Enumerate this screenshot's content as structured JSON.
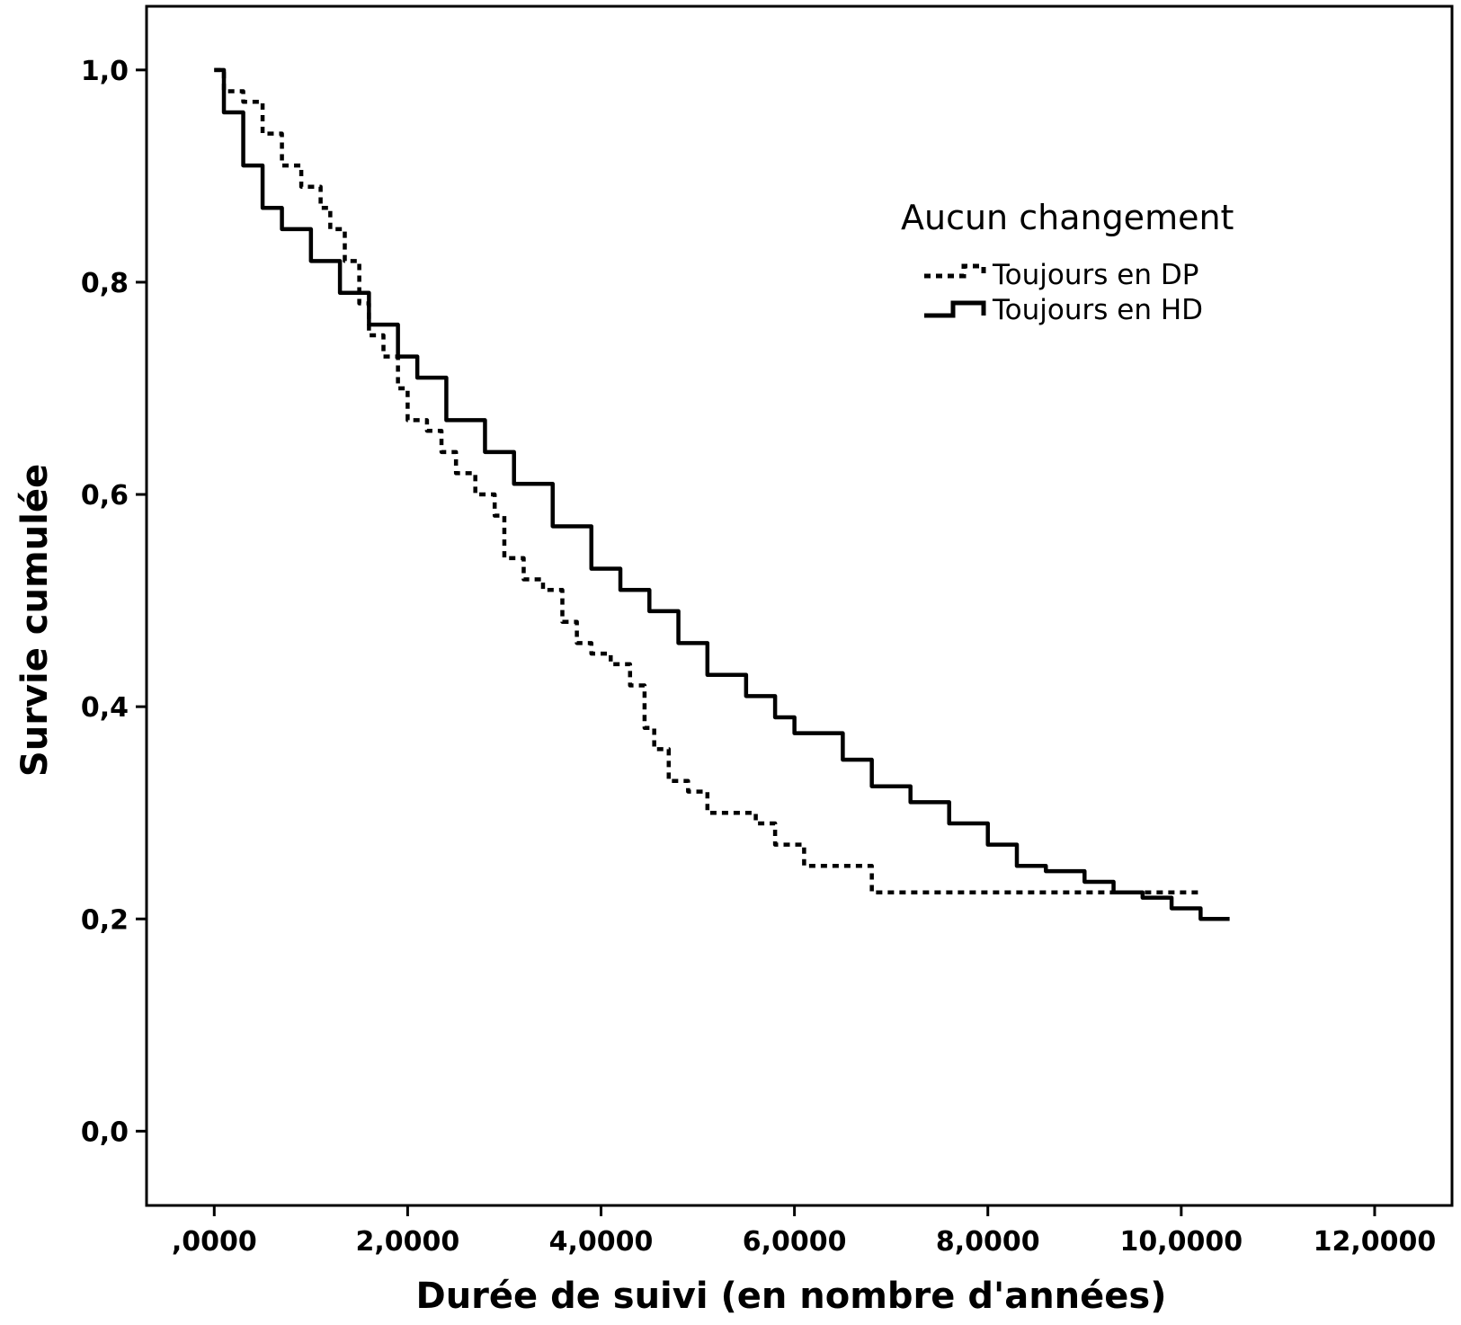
{
  "chart_data": {
    "type": "line",
    "xlabel": "Durée de suivi (en nombre d'années)",
    "ylabel": "Survie cumulée",
    "xlim": [
      -0.7,
      12.8
    ],
    "ylim": [
      -0.07,
      1.06
    ],
    "x_ticks": [
      0,
      2,
      4,
      6,
      8,
      10,
      12
    ],
    "x_tick_labels": [
      ",0000",
      "2,0000",
      "4,0000",
      "6,0000",
      "8,0000",
      "10,0000",
      "12,0000"
    ],
    "y_ticks": [
      0,
      0.2,
      0.4,
      0.6,
      0.8,
      1.0
    ],
    "y_tick_labels": [
      "0,0",
      "0,2",
      "0,4",
      "0,6",
      "0,8",
      "1,0"
    ],
    "grid": false,
    "legend": {
      "title": "Aucun changement",
      "placement": "top-right"
    },
    "series": [
      {
        "name": "Toujours en DP",
        "style": "dotted",
        "step": true,
        "points": [
          [
            0.0,
            1.0
          ],
          [
            0.1,
            0.98
          ],
          [
            0.3,
            0.97
          ],
          [
            0.5,
            0.94
          ],
          [
            0.7,
            0.91
          ],
          [
            0.9,
            0.89
          ],
          [
            1.1,
            0.87
          ],
          [
            1.2,
            0.85
          ],
          [
            1.35,
            0.82
          ],
          [
            1.5,
            0.78
          ],
          [
            1.6,
            0.75
          ],
          [
            1.75,
            0.73
          ],
          [
            1.9,
            0.7
          ],
          [
            2.0,
            0.67
          ],
          [
            2.2,
            0.66
          ],
          [
            2.35,
            0.64
          ],
          [
            2.5,
            0.62
          ],
          [
            2.7,
            0.6
          ],
          [
            2.9,
            0.58
          ],
          [
            3.0,
            0.54
          ],
          [
            3.2,
            0.52
          ],
          [
            3.4,
            0.51
          ],
          [
            3.6,
            0.48
          ],
          [
            3.75,
            0.46
          ],
          [
            3.9,
            0.45
          ],
          [
            4.1,
            0.44
          ],
          [
            4.3,
            0.42
          ],
          [
            4.45,
            0.38
          ],
          [
            4.55,
            0.36
          ],
          [
            4.7,
            0.33
          ],
          [
            4.9,
            0.32
          ],
          [
            5.1,
            0.3
          ],
          [
            5.6,
            0.29
          ],
          [
            5.8,
            0.27
          ],
          [
            6.1,
            0.25
          ],
          [
            6.8,
            0.225
          ],
          [
            10.2,
            0.225
          ]
        ]
      },
      {
        "name": "Toujours en HD",
        "style": "solid",
        "step": true,
        "points": [
          [
            0.0,
            1.0
          ],
          [
            0.1,
            0.96
          ],
          [
            0.3,
            0.91
          ],
          [
            0.5,
            0.87
          ],
          [
            0.7,
            0.85
          ],
          [
            1.0,
            0.82
          ],
          [
            1.3,
            0.79
          ],
          [
            1.6,
            0.76
          ],
          [
            1.9,
            0.73
          ],
          [
            2.1,
            0.71
          ],
          [
            2.4,
            0.67
          ],
          [
            2.8,
            0.64
          ],
          [
            3.1,
            0.61
          ],
          [
            3.5,
            0.57
          ],
          [
            3.9,
            0.53
          ],
          [
            4.2,
            0.51
          ],
          [
            4.5,
            0.49
          ],
          [
            4.8,
            0.46
          ],
          [
            5.1,
            0.43
          ],
          [
            5.5,
            0.41
          ],
          [
            5.8,
            0.39
          ],
          [
            6.0,
            0.375
          ],
          [
            6.5,
            0.35
          ],
          [
            6.8,
            0.325
          ],
          [
            7.2,
            0.31
          ],
          [
            7.6,
            0.29
          ],
          [
            8.0,
            0.27
          ],
          [
            8.3,
            0.25
          ],
          [
            8.6,
            0.245
          ],
          [
            9.0,
            0.235
          ],
          [
            9.3,
            0.225
          ],
          [
            9.6,
            0.22
          ],
          [
            9.9,
            0.21
          ],
          [
            10.2,
            0.2
          ],
          [
            10.5,
            0.2
          ]
        ]
      }
    ]
  }
}
